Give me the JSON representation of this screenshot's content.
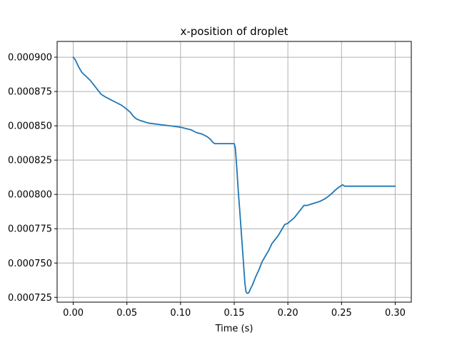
{
  "chart_data": {
    "type": "line",
    "title": "x-position of droplet",
    "xlabel": "Time (s)",
    "ylabel": "",
    "xlim": [
      -0.015,
      0.315
    ],
    "ylim": [
      0.0007215,
      0.0009115
    ],
    "grid": true,
    "legend": "none",
    "x_ticks": [
      0.0,
      0.05,
      0.1,
      0.15,
      0.2,
      0.25,
      0.3
    ],
    "x_tick_labels": [
      "0.00",
      "0.05",
      "0.10",
      "0.15",
      "0.20",
      "0.25",
      "0.30"
    ],
    "y_ticks": [
      0.000725,
      0.00075,
      0.000775,
      0.0008,
      0.000825,
      0.00085,
      0.000875,
      0.0009
    ],
    "y_tick_labels": [
      "0.000725",
      "0.000750",
      "0.000775",
      "0.000800",
      "0.000825",
      "0.000850",
      "0.000875",
      "0.000900"
    ],
    "series": [
      {
        "color": "#1f77b4",
        "x": [
          0.0,
          0.002,
          0.005,
          0.008,
          0.012,
          0.016,
          0.02,
          0.023,
          0.026,
          0.03,
          0.035,
          0.04,
          0.045,
          0.05,
          0.053,
          0.056,
          0.059,
          0.062,
          0.066,
          0.07,
          0.08,
          0.09,
          0.1,
          0.105,
          0.11,
          0.115,
          0.12,
          0.125,
          0.128,
          0.13,
          0.132,
          0.135,
          0.14,
          0.145,
          0.148,
          0.15,
          0.151,
          0.152,
          0.153,
          0.154,
          0.155,
          0.156,
          0.157,
          0.158,
          0.159,
          0.16,
          0.161,
          0.162,
          0.163,
          0.164,
          0.165,
          0.167,
          0.17,
          0.173,
          0.176,
          0.179,
          0.182,
          0.185,
          0.188,
          0.191,
          0.194,
          0.197,
          0.2,
          0.203,
          0.206,
          0.209,
          0.212,
          0.215,
          0.218,
          0.222,
          0.226,
          0.23,
          0.235,
          0.24,
          0.244,
          0.247,
          0.249,
          0.251,
          0.253,
          0.256,
          0.26,
          0.27,
          0.28,
          0.29,
          0.3
        ],
        "y": [
          0.0009,
          0.000898,
          0.000893,
          0.000889,
          0.000886,
          0.000883,
          0.000879,
          0.000876,
          0.000873,
          0.000871,
          0.000869,
          0.000867,
          0.000865,
          0.000862,
          0.00086,
          0.000857,
          0.000855,
          0.000854,
          0.000853,
          0.000852,
          0.000851,
          0.00085,
          0.000849,
          0.000848,
          0.000847,
          0.000845,
          0.000844,
          0.000842,
          0.00084,
          0.000838,
          0.000837,
          0.000837,
          0.000837,
          0.000837,
          0.000837,
          0.000837,
          0.000834,
          0.000824,
          0.000812,
          0.0008,
          0.00079,
          0.000779,
          0.000768,
          0.000757,
          0.000746,
          0.000735,
          0.000729,
          0.000728,
          0.000728,
          0.000729,
          0.000731,
          0.000734,
          0.00074,
          0.000745,
          0.000751,
          0.000755,
          0.000759,
          0.000764,
          0.000767,
          0.00077,
          0.000774,
          0.000778,
          0.000779,
          0.000781,
          0.000783,
          0.000786,
          0.000789,
          0.000792,
          0.000792,
          0.000793,
          0.000794,
          0.000795,
          0.000797,
          0.0008,
          0.000803,
          0.000805,
          0.000806,
          0.000807,
          0.000806,
          0.000806,
          0.000806,
          0.000806,
          0.000806,
          0.000806,
          0.000806
        ]
      }
    ]
  }
}
